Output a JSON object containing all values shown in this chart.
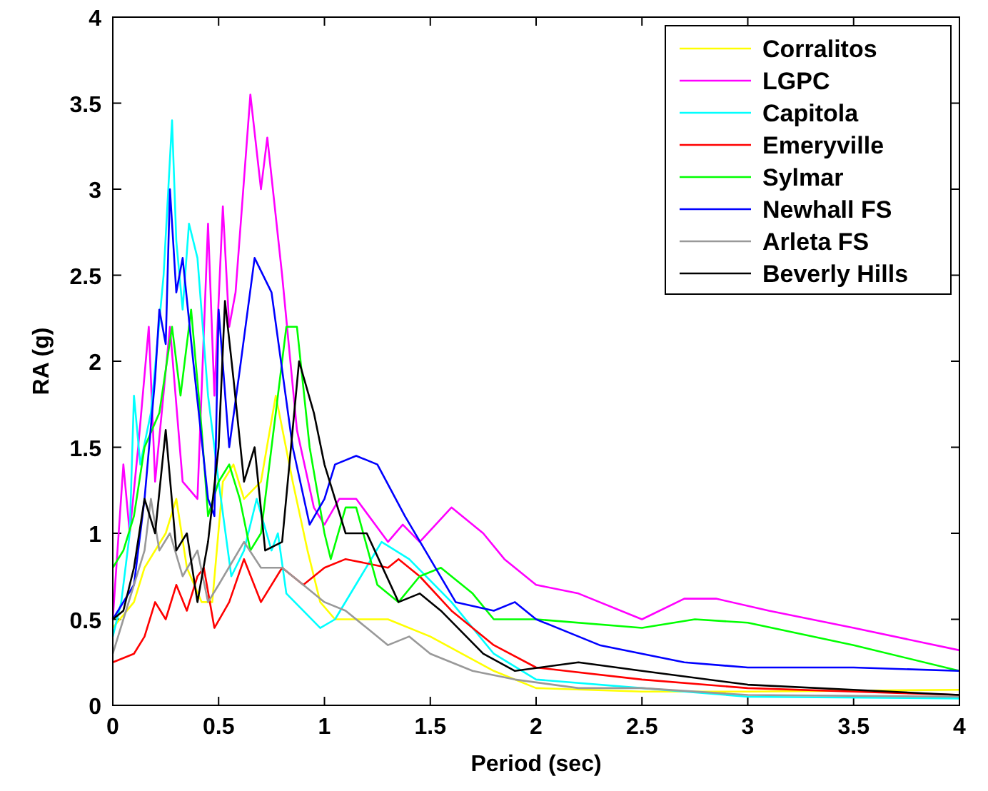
{
  "chart_data": {
    "type": "line",
    "xlabel": "Period (sec)",
    "ylabel": "RA (g)",
    "xlim": [
      0,
      4
    ],
    "ylim": [
      0,
      4
    ],
    "xticks": [
      0,
      0.5,
      1,
      1.5,
      2,
      2.5,
      3,
      3.5,
      4
    ],
    "yticks": [
      0,
      0.5,
      1,
      1.5,
      2,
      2.5,
      3,
      3.5,
      4
    ],
    "grid": false,
    "legend": "top right",
    "marker": "none",
    "line_style": "solid",
    "series": [
      {
        "name": "Corralitos",
        "color": "#ffff00",
        "x": [
          0,
          0.1,
          0.15,
          0.25,
          0.3,
          0.35,
          0.42,
          0.47,
          0.52,
          0.57,
          0.62,
          0.7,
          0.77,
          0.85,
          0.92,
          0.98,
          1.05,
          1.3,
          1.5,
          1.8,
          2,
          2.5,
          3,
          4
        ],
        "values": [
          0.45,
          0.6,
          0.8,
          1,
          1.2,
          0.8,
          0.6,
          0.6,
          1.3,
          1.4,
          1.2,
          1.3,
          1.8,
          1.3,
          0.9,
          0.6,
          0.5,
          0.5,
          0.4,
          0.2,
          0.1,
          0.08,
          0.08,
          0.09
        ]
      },
      {
        "name": "LGPC",
        "color": "#ff00ff",
        "x": [
          0,
          0.05,
          0.08,
          0.12,
          0.17,
          0.2,
          0.27,
          0.33,
          0.4,
          0.45,
          0.48,
          0.52,
          0.55,
          0.58,
          0.65,
          0.7,
          0.73,
          0.8,
          0.87,
          0.95,
          1,
          1.07,
          1.15,
          1.3,
          1.37,
          1.45,
          1.6,
          1.75,
          1.85,
          2,
          2.2,
          2.5,
          2.7,
          2.85,
          3.1,
          3.5,
          4
        ],
        "values": [
          0.5,
          1.4,
          1,
          1.5,
          2.2,
          1.3,
          2.2,
          1.3,
          1.2,
          2.8,
          1.8,
          2.9,
          2.2,
          2.4,
          3.55,
          3,
          3.3,
          2.5,
          1.6,
          1.15,
          1.05,
          1.2,
          1.2,
          0.95,
          1.05,
          0.95,
          1.15,
          1,
          0.85,
          0.7,
          0.65,
          0.5,
          0.62,
          0.62,
          0.55,
          0.45,
          0.32
        ]
      },
      {
        "name": "Capitola",
        "color": "#00ffff",
        "x": [
          0,
          0.04,
          0.08,
          0.1,
          0.13,
          0.18,
          0.24,
          0.28,
          0.3,
          0.33,
          0.36,
          0.4,
          0.45,
          0.5,
          0.56,
          0.62,
          0.68,
          0.75,
          0.78,
          0.82,
          0.98,
          1.05,
          1.27,
          1.4,
          1.6,
          1.8,
          2,
          2.5,
          3,
          4
        ],
        "values": [
          0.4,
          0.6,
          1,
          1.8,
          1.4,
          1.7,
          2.5,
          3.4,
          2.7,
          2.3,
          2.8,
          2.6,
          1.8,
          1.3,
          0.75,
          0.9,
          1.2,
          0.9,
          1,
          0.65,
          0.45,
          0.5,
          0.95,
          0.85,
          0.6,
          0.3,
          0.15,
          0.1,
          0.05,
          0.04
        ]
      },
      {
        "name": "Emeryville",
        "color": "#ff0000",
        "x": [
          0,
          0.1,
          0.15,
          0.2,
          0.25,
          0.3,
          0.35,
          0.4,
          0.43,
          0.48,
          0.55,
          0.62,
          0.7,
          0.8,
          0.9,
          1,
          1.1,
          1.3,
          1.35,
          1.45,
          1.6,
          1.8,
          2,
          2.5,
          3,
          4
        ],
        "values": [
          0.25,
          0.3,
          0.4,
          0.6,
          0.5,
          0.7,
          0.55,
          0.75,
          0.8,
          0.45,
          0.6,
          0.85,
          0.6,
          0.8,
          0.7,
          0.8,
          0.85,
          0.8,
          0.85,
          0.75,
          0.55,
          0.35,
          0.22,
          0.15,
          0.1,
          0.06
        ]
      },
      {
        "name": "Sylmar",
        "color": "#00ff00",
        "x": [
          0,
          0.05,
          0.1,
          0.15,
          0.22,
          0.28,
          0.32,
          0.37,
          0.42,
          0.45,
          0.5,
          0.55,
          0.6,
          0.65,
          0.7,
          0.75,
          0.82,
          0.87,
          0.93,
          1,
          1.03,
          1.1,
          1.15,
          1.25,
          1.35,
          1.45,
          1.55,
          1.7,
          1.8,
          2,
          2.5,
          2.75,
          3,
          3.5,
          4
        ],
        "values": [
          0.8,
          0.9,
          1.1,
          1.5,
          1.7,
          2.2,
          1.8,
          2.3,
          1.6,
          1.1,
          1.3,
          1.4,
          1.2,
          0.9,
          1,
          1.5,
          2.2,
          2.2,
          1.5,
          1,
          0.85,
          1.15,
          1.15,
          0.7,
          0.6,
          0.75,
          0.8,
          0.65,
          0.5,
          0.5,
          0.45,
          0.5,
          0.48,
          0.35,
          0.2
        ]
      },
      {
        "name": "Newhall FS",
        "color": "#0000ff",
        "x": [
          0,
          0.1,
          0.15,
          0.2,
          0.22,
          0.25,
          0.27,
          0.3,
          0.33,
          0.38,
          0.45,
          0.48,
          0.5,
          0.55,
          0.6,
          0.67,
          0.75,
          0.85,
          0.93,
          1,
          1.05,
          1.15,
          1.25,
          1.38,
          1.5,
          1.62,
          1.8,
          1.9,
          2,
          2.3,
          2.7,
          3,
          3.5,
          4
        ],
        "values": [
          0.5,
          0.7,
          1.2,
          1.9,
          2.3,
          2.1,
          3,
          2.4,
          2.6,
          2,
          1.2,
          1.1,
          2.3,
          1.5,
          1.95,
          2.6,
          2.4,
          1.5,
          1.05,
          1.2,
          1.4,
          1.45,
          1.4,
          1.1,
          0.85,
          0.6,
          0.55,
          0.6,
          0.5,
          0.35,
          0.25,
          0.22,
          0.22,
          0.2
        ]
      },
      {
        "name": "Arleta FS",
        "color": "#999999",
        "x": [
          0,
          0.05,
          0.1,
          0.15,
          0.18,
          0.22,
          0.27,
          0.33,
          0.4,
          0.45,
          0.5,
          0.62,
          0.7,
          0.8,
          0.9,
          1,
          1.1,
          1.2,
          1.3,
          1.4,
          1.5,
          1.7,
          1.9,
          2.2,
          2.5,
          3,
          4
        ],
        "values": [
          0.3,
          0.5,
          0.7,
          0.9,
          1.2,
          0.9,
          1,
          0.75,
          0.9,
          0.6,
          0.7,
          0.95,
          0.8,
          0.8,
          0.7,
          0.6,
          0.55,
          0.45,
          0.35,
          0.4,
          0.3,
          0.2,
          0.15,
          0.1,
          0.1,
          0.06,
          0.05
        ]
      },
      {
        "name": "Beverly Hills",
        "color": "#000000",
        "x": [
          0,
          0.05,
          0.1,
          0.15,
          0.2,
          0.25,
          0.3,
          0.35,
          0.4,
          0.45,
          0.5,
          0.53,
          0.57,
          0.62,
          0.67,
          0.72,
          0.8,
          0.88,
          0.95,
          1,
          1.1,
          1.2,
          1.35,
          1.45,
          1.55,
          1.75,
          1.9,
          2.2,
          2.5,
          3,
          4
        ],
        "values": [
          0.5,
          0.55,
          0.8,
          1.2,
          1,
          1.6,
          0.9,
          1,
          0.6,
          0.95,
          1.5,
          2.35,
          1.9,
          1.3,
          1.5,
          0.9,
          0.95,
          2,
          1.7,
          1.4,
          1,
          1,
          0.6,
          0.65,
          0.55,
          0.3,
          0.2,
          0.25,
          0.2,
          0.12,
          0.06
        ]
      }
    ]
  }
}
